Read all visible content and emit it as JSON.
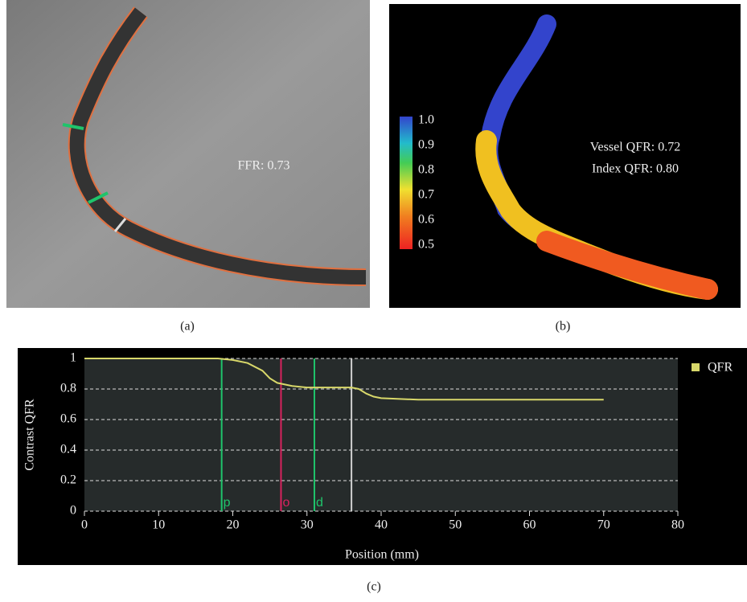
{
  "panel_a": {
    "label": "(a)",
    "annotation": "FFR: 0.73"
  },
  "panel_b": {
    "label": "(b)",
    "vessel_qfr": "Vessel QFR: 0.72",
    "index_qfr": "Index QFR: 0.80",
    "colorbar": {
      "lim": [
        0.5,
        1.0
      ],
      "ticks": [
        {
          "value": 1.0,
          "label": "1.0"
        },
        {
          "value": 0.9,
          "label": "0.9"
        },
        {
          "value": 0.8,
          "label": "0.8"
        },
        {
          "value": 0.7,
          "label": "0.7"
        },
        {
          "value": 0.6,
          "label": "0.6"
        },
        {
          "value": 0.5,
          "label": "0.5"
        }
      ]
    }
  },
  "panel_c": {
    "label": "(c)"
  },
  "chart_data": {
    "type": "line",
    "x_label": "Position (mm)",
    "y_label": "Contrast QFR",
    "x": [
      0,
      18,
      20,
      22,
      24,
      25,
      26,
      28,
      30,
      34,
      36,
      37,
      38,
      39,
      40,
      45,
      50,
      60,
      70
    ],
    "series": [
      {
        "name": "QFR",
        "color": "#d8d86a",
        "values": [
          1,
          1,
          0.99,
          0.97,
          0.92,
          0.87,
          0.84,
          0.82,
          0.81,
          0.81,
          0.81,
          0.8,
          0.77,
          0.75,
          0.74,
          0.73,
          0.73,
          0.73,
          0.73
        ]
      }
    ],
    "xlim": [
      0,
      80
    ],
    "ylim": [
      0,
      1
    ],
    "xticks": [
      0,
      10,
      20,
      30,
      40,
      50,
      60,
      70,
      80
    ],
    "yticks": [
      0,
      0.2,
      0.4,
      0.6,
      0.8,
      1
    ],
    "grid": true,
    "legend": "upper right",
    "markers": [
      {
        "x": 18.5,
        "label": "p",
        "color": "#1fc46b"
      },
      {
        "x": 26.5,
        "label": "o",
        "color": "#d8225e"
      },
      {
        "x": 31,
        "label": "d",
        "color": "#1fc46b"
      },
      {
        "x": 36,
        "color": "#d0d0d0"
      }
    ]
  }
}
